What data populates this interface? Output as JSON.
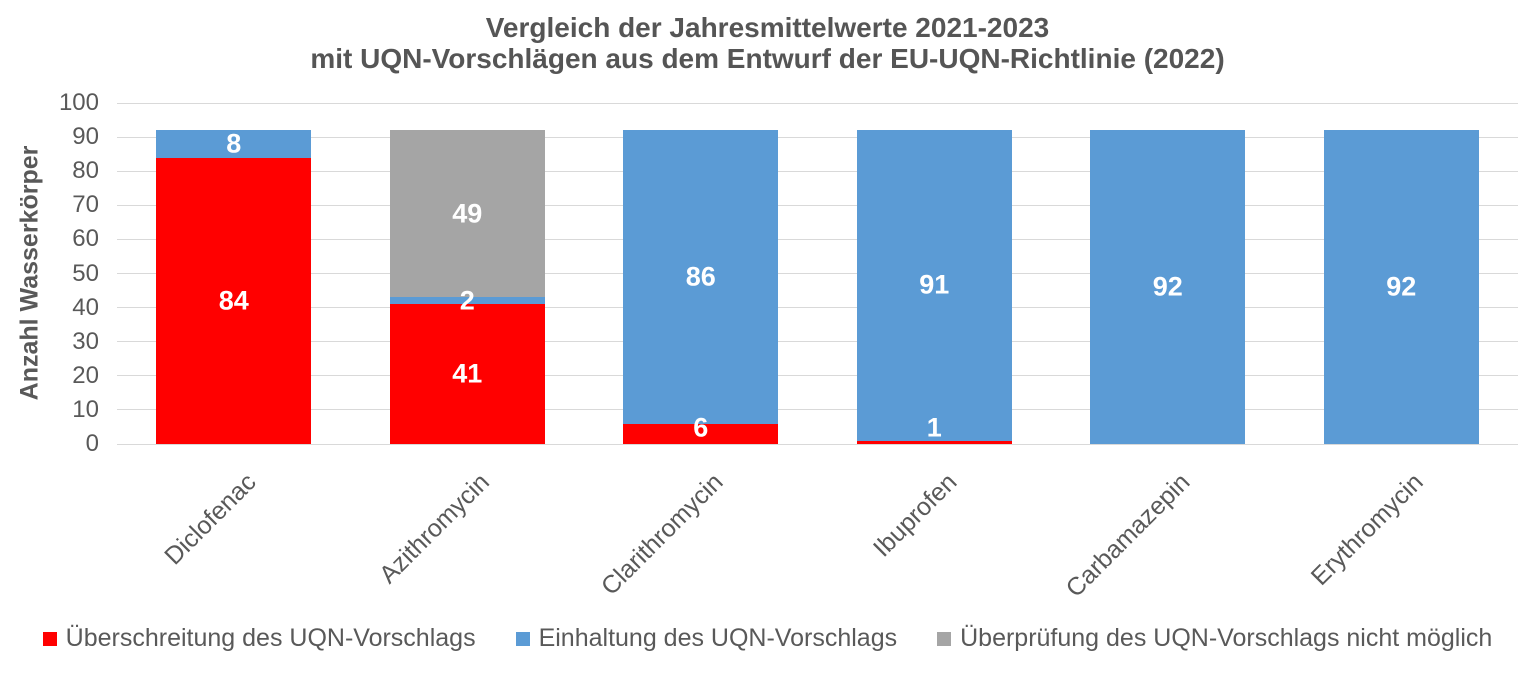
{
  "chart": {
    "title_line1": "Vergleich der Jahresmittelwerte 2021-2023",
    "title_line2": "mit UQN-Vorschlägen aus dem Entwurf der EU-UQN-Richtlinie (2022)",
    "y_axis_label": "Anzahl Wasserkörper"
  },
  "colors": {
    "exceedance_red": "#FF0000",
    "compliance_blue": "#5B9BD5",
    "not_verifiable_gray": "#A5A5A5",
    "gridline": "#D9D9D9",
    "axis_text": "#595959",
    "title_text": "#555555",
    "bar_label_text": "#FFFFFF"
  },
  "chart_data": {
    "type": "bar",
    "stacked": true,
    "title": "Vergleich der Jahresmittelwerte 2021-2023 mit UQN-Vorschlägen aus dem Entwurf der EU-UQN-Richtlinie (2022)",
    "xlabel": "",
    "ylabel": "Anzahl Wasserkörper",
    "ylim": [
      0,
      100
    ],
    "ytick_step": 10,
    "grid": true,
    "legend_position": "bottom",
    "categories": [
      "Diclofenac",
      "Azithromycin",
      "Clarithromycin",
      "Ibuprofen",
      "Carbamazepin",
      "Erythromycin"
    ],
    "series": [
      {
        "name": "Überschreitung des UQN-Vorschlags",
        "color": "#FF0000",
        "values": [
          84,
          41,
          6,
          1,
          0,
          0
        ]
      },
      {
        "name": "Einhaltung des UQN-Vorschlags",
        "color": "#5B9BD5",
        "values": [
          8,
          2,
          86,
          91,
          92,
          92
        ]
      },
      {
        "name": "Überprüfung des UQN-Vorschlags nicht möglich",
        "color": "#A5A5A5",
        "values": [
          0,
          49,
          0,
          0,
          0,
          0
        ]
      }
    ],
    "bar_totals": [
      92,
      92,
      92,
      92,
      92,
      92
    ],
    "data_labels_shown": true
  }
}
